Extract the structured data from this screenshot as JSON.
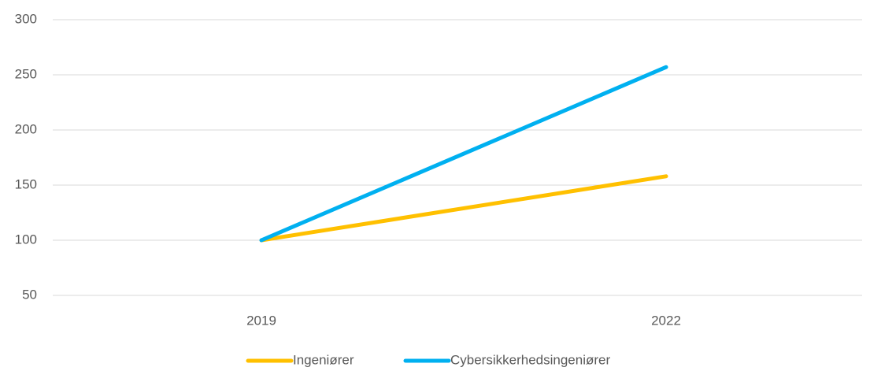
{
  "chart_data": {
    "type": "line",
    "categories": [
      "2019",
      "2022"
    ],
    "series": [
      {
        "name": "Ingeniører",
        "color": "#ffc000",
        "values": [
          100,
          158
        ]
      },
      {
        "name": "Cybersikkerhedsingeniører",
        "color": "#00b0f0",
        "values": [
          100,
          257
        ]
      }
    ],
    "ylim": [
      50,
      300
    ],
    "yticks": [
      50,
      100,
      150,
      200,
      250,
      300
    ],
    "grid": true,
    "legend": "bottom"
  }
}
